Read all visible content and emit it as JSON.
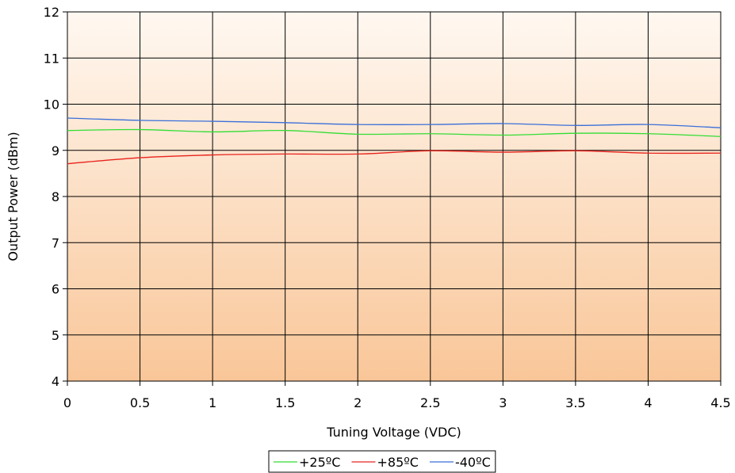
{
  "chart_data": {
    "type": "line",
    "title": "",
    "xlabel": "Tuning Voltage (VDC)",
    "ylabel": "Output Power (dBm)",
    "xlim": [
      0,
      4.5
    ],
    "ylim": [
      4,
      12
    ],
    "x_ticks": [
      "0",
      "0.5",
      "1",
      "1.5",
      "2",
      "2.5",
      "3",
      "3.5",
      "4",
      "4.5"
    ],
    "y_ticks": [
      "4",
      "5",
      "6",
      "7",
      "8",
      "9",
      "10",
      "11",
      "12"
    ],
    "grid": true,
    "legend_position": "bottom",
    "background_gradient": [
      "#fff8f1",
      "#f9c698"
    ],
    "series": [
      {
        "name": "+25ºC",
        "color": "#33dd33",
        "x": [
          0,
          0.5,
          1,
          1.5,
          2,
          2.5,
          3,
          3.5,
          4,
          4.5
        ],
        "y": [
          9.43,
          9.45,
          9.4,
          9.43,
          9.35,
          9.36,
          9.33,
          9.37,
          9.36,
          9.3
        ]
      },
      {
        "name": "+85ºC",
        "color": "#e8231d",
        "x": [
          0,
          0.5,
          1,
          1.5,
          2,
          2.5,
          3,
          3.5,
          4,
          4.5
        ],
        "y": [
          8.71,
          8.84,
          8.9,
          8.92,
          8.92,
          8.99,
          8.96,
          8.99,
          8.94,
          8.94
        ]
      },
      {
        "name": "-40ºC",
        "color": "#3a6fd8",
        "x": [
          0,
          0.5,
          1,
          1.5,
          2,
          2.5,
          3,
          3.5,
          4,
          4.5
        ],
        "y": [
          9.7,
          9.65,
          9.63,
          9.6,
          9.56,
          9.56,
          9.58,
          9.54,
          9.56,
          9.49
        ]
      }
    ]
  }
}
